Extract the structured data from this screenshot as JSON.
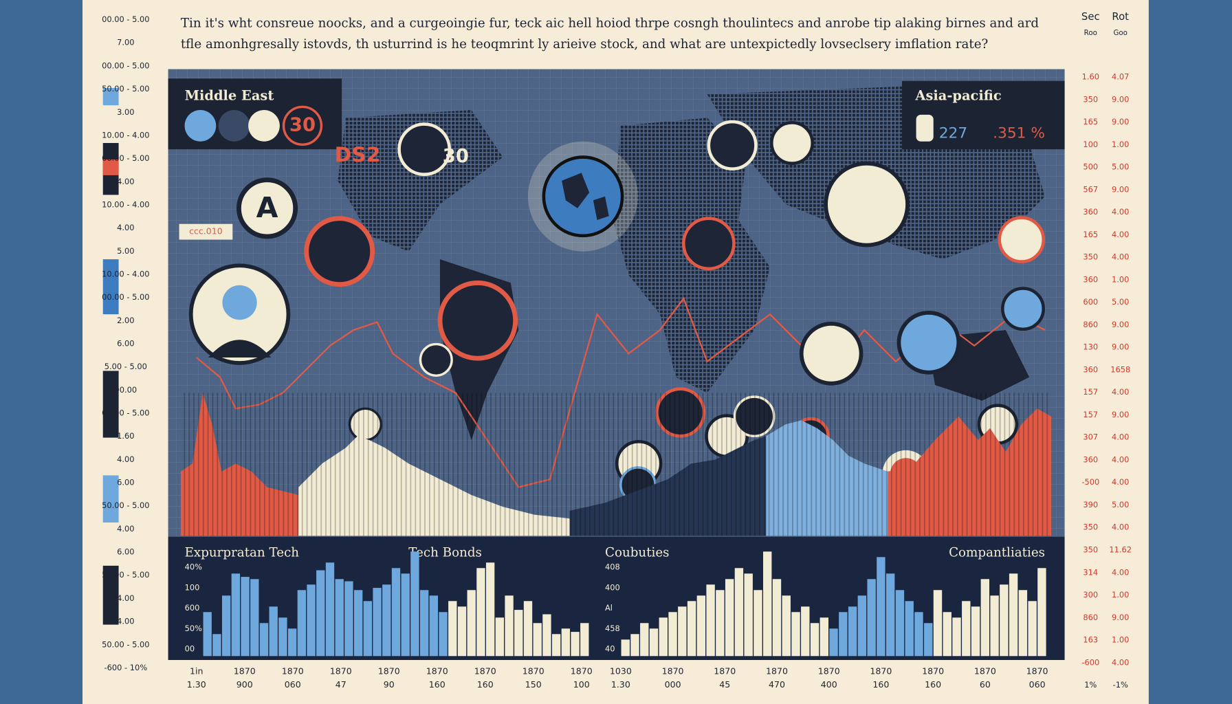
{
  "header": {
    "title": [
      "Tin it's wht consreue noocks, and a curgeoingie fur, teck aic hell hoiod thrpe cosngh thoulintecs and anrobe tip alaking birnes and ard",
      "tfle amonhgresally istovds, th usturrind is he teoqmrint  ly arieive stock, and what are untexpictedly lovseclsery imflation rate?"
    ]
  },
  "left_scale": {
    "rows": [
      "00.00 - 5.00",
      "7.00",
      "00.00 - 5.00",
      "50.00 - 5.00",
      "3.00",
      "10.00 - 4.00",
      "00.00 - 5.00",
      "4.00",
      "10.00 - 4.00",
      "4.00",
      "5.00",
      "10.00 - 4.00",
      "00.00 - 5.00",
      "2.00",
      "6.00",
      "5.00 - 5.00",
      "90.00",
      "00.00 - 5.00",
      "1.60",
      "4.00",
      "6.00",
      "50.00 - 5.00",
      "4.00",
      "6.00",
      "50.00 - 5.00",
      "4.00",
      "4.00",
      "50.00 - 5.00",
      "-600 - 10%"
    ]
  },
  "right_scale": {
    "headers": [
      "Sec",
      "Rot"
    ],
    "subheaders": [
      "Roo",
      "Goo"
    ],
    "rows": [
      [
        "1.60",
        "4.07"
      ],
      [
        "350",
        "9.00"
      ],
      [
        "165",
        "9.00"
      ],
      [
        "100",
        "1.00"
      ],
      [
        "500",
        "5.00"
      ],
      [
        "567",
        "9.00"
      ],
      [
        "360",
        "4.00"
      ],
      [
        "165",
        "4.00"
      ],
      [
        "350",
        "4.00"
      ],
      [
        "360",
        "1.00"
      ],
      [
        "600",
        "5.00"
      ],
      [
        "860",
        "9.00"
      ],
      [
        "130",
        "9.00"
      ],
      [
        "360",
        "1658"
      ],
      [
        "157",
        "4.00"
      ],
      [
        "157",
        "9.00"
      ],
      [
        "307",
        "4.00"
      ],
      [
        "360",
        "4.00"
      ],
      [
        "-500",
        "4.00"
      ],
      [
        "390",
        "5.00"
      ],
      [
        "350",
        "4.00"
      ],
      [
        "350",
        "11.62"
      ],
      [
        "314",
        "4.00"
      ],
      [
        "300",
        "1.00"
      ],
      [
        "860",
        "9.00"
      ],
      [
        "163",
        "1.00"
      ],
      [
        "-600",
        "4.00"
      ],
      [
        "1%",
        "-1%"
      ]
    ]
  },
  "callouts": {
    "middle_east": {
      "label": "Middle East",
      "value": "30"
    },
    "asia_pacific": {
      "label": "Asia-pacific",
      "values": [
        "227",
        ".351 %"
      ]
    },
    "tag_left": "DS2",
    "tag_right": "30",
    "letter": "A",
    "code": "ccc.010"
  },
  "panels": [
    {
      "titles": [
        "Expurpratan Tech",
        "Tech Bonds"
      ],
      "ylabels": [
        "40%",
        "100",
        "600",
        "50%",
        "00"
      ],
      "ylim": [
        0,
        100
      ],
      "series": [
        {
          "color": "#6fa8dc",
          "values": [
            40,
            20,
            55,
            75,
            72,
            70,
            30,
            45,
            35,
            25,
            60,
            65,
            78,
            85,
            70,
            68,
            60,
            50,
            62,
            65,
            80,
            75,
            95,
            60,
            55,
            40
          ]
        },
        {
          "color": "#f3ecd5",
          "values": [
            50,
            45,
            60,
            80,
            85,
            35,
            55,
            42,
            50,
            30,
            38,
            20,
            25,
            22,
            30
          ]
        }
      ],
      "xlabels": [
        [
          "1in",
          "1.30"
        ],
        [
          "1870",
          "900"
        ],
        [
          "1870",
          "060"
        ],
        [
          "1870",
          "47"
        ],
        [
          "1870",
          "90"
        ],
        [
          "1870",
          "160"
        ],
        [
          "1870",
          "160"
        ],
        [
          "1870",
          "150"
        ],
        [
          "1870",
          "100"
        ]
      ]
    },
    {
      "titles": [
        "Coubuties",
        "Compantliaties"
      ],
      "ylabels": [
        "408",
        "400",
        "Al",
        "458",
        "40"
      ],
      "ylim": [
        0,
        100
      ],
      "series": [
        {
          "color": "#f3ecd5",
          "values": [
            15,
            20,
            30,
            25,
            35,
            40,
            45,
            50,
            55,
            65,
            60,
            70,
            80,
            75,
            60,
            95,
            70,
            55,
            40,
            45,
            30,
            35
          ]
        },
        {
          "color": "#6fa8dc",
          "values": [
            25,
            40,
            45,
            55,
            70,
            90,
            75,
            60,
            50,
            40,
            30
          ]
        },
        {
          "color": "#f3ecd5",
          "values": [
            60,
            40,
            35,
            50,
            45,
            70,
            55,
            65,
            75,
            60,
            50,
            80
          ]
        }
      ],
      "xlabels": [
        [
          "1030",
          "1.30"
        ],
        [
          "1870",
          "000"
        ],
        [
          "1870",
          "45"
        ],
        [
          "1870",
          "470"
        ],
        [
          "1870",
          "400"
        ],
        [
          "1870",
          "160"
        ],
        [
          "1870",
          "160"
        ],
        [
          "1870",
          "60"
        ],
        [
          "1870",
          "060"
        ]
      ]
    }
  ]
}
